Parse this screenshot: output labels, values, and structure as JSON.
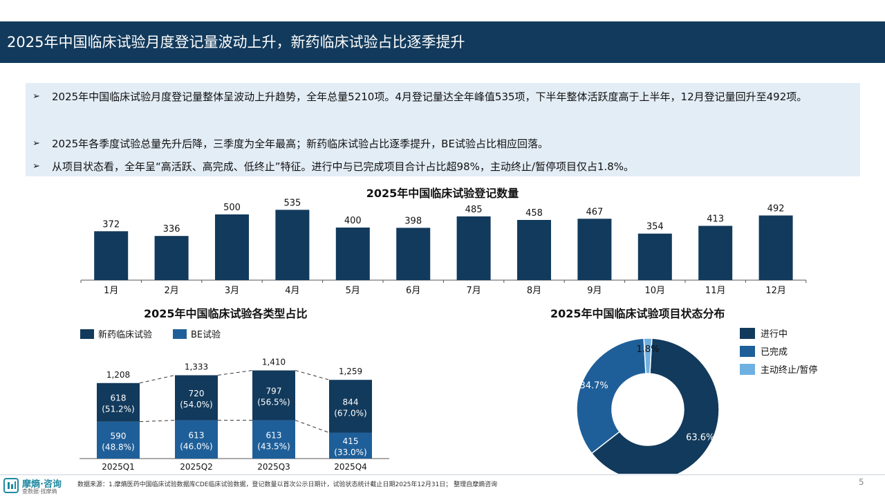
{
  "header": {
    "title": "2025年中国临床试验月度登记量波动上升，新药临床试验占比逐季提升"
  },
  "summary": {
    "bullets": [
      "2025年中国临床试验月度登记量整体呈波动上升趋势，全年总量5210项。4月登记量达全年峰值535项，下半年整体活跃度高于上半年，12月登记量回升至492项。",
      "2025年各季度试验总量先升后降，三季度为全年最高；新药临床试验占比逐季提升，BE试验占比相应回落。",
      "从项目状态看，全年呈“高活跃、高完成、低终止”特征。进行中与已完成项目合计占比超98%，主动终止/暂停项目仅占1.8%。"
    ]
  },
  "chart_data": [
    {
      "type": "bar",
      "title": "2025年中国临床试验登记数量",
      "categories": [
        "1月",
        "2月",
        "3月",
        "4月",
        "5月",
        "6月",
        "7月",
        "8月",
        "9月",
        "10月",
        "11月",
        "12月"
      ],
      "values": [
        372,
        336,
        500,
        535,
        400,
        398,
        485,
        458,
        467,
        354,
        413,
        492
      ],
      "color": "#123a5c"
    },
    {
      "type": "bar",
      "stacked": true,
      "title": "2025年中国临床试验各类型占比",
      "categories": [
        "2025Q1",
        "2025Q2",
        "2025Q3",
        "2025Q4"
      ],
      "totals": [
        "1,208",
        "1,333",
        "1,410",
        "1,259"
      ],
      "series": [
        {
          "name": "新药临床试验",
          "color": "#123a5c",
          "values": [
            618,
            720,
            797,
            844
          ],
          "shares": [
            "(51.2%)",
            "(54.0%)",
            "(56.5%)",
            "(67.0%)"
          ]
        },
        {
          "name": "BE试验",
          "color": "#1f5f99",
          "values": [
            590,
            613,
            613,
            415
          ],
          "shares": [
            "(48.8%)",
            "(46.0%)",
            "(43.5%)",
            "(33.0%)"
          ]
        }
      ]
    },
    {
      "type": "pie",
      "donut": true,
      "title": "2025年中国临床试验项目状态分布",
      "labels": [
        "进行中",
        "已完成",
        "主动终止/暂停"
      ],
      "values": [
        63.6,
        34.7,
        1.8
      ],
      "value_labels": [
        "63.6%",
        "34.7%",
        "1.8%"
      ],
      "colors": [
        "#123a5c",
        "#1f5f99",
        "#6fb0e2"
      ]
    }
  ],
  "footer": {
    "brand": "摩熵·咨询",
    "tagline": "查数据·找摩熵",
    "source": "数据来源：1.摩熵医药中国临床试验数据库CDE临床试验数据，登记数量以首次公示日期计，试验状态统计截止日期2025年12月31日； 整理自摩熵咨询",
    "page": "5"
  }
}
